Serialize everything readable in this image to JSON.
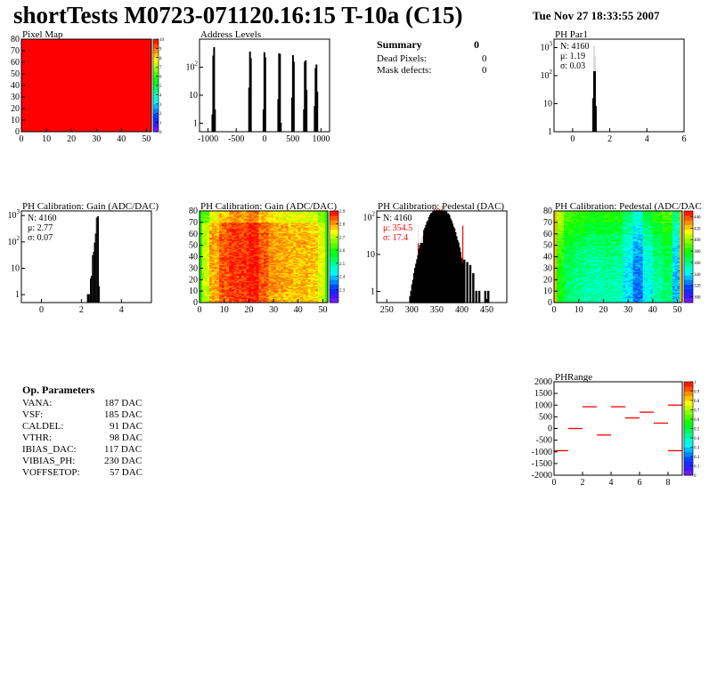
{
  "header": {
    "title": "shortTests M0723-071120.16:15 T-10a (C15)",
    "date": "Tue Nov 27 18:33:55 2007"
  },
  "summary": {
    "title": "Summary",
    "total": "0",
    "rows": [
      {
        "label": "Dead Pixels:",
        "value": "0"
      },
      {
        "label": "Mask defects:",
        "value": "0"
      }
    ]
  },
  "op_parameters": {
    "title": "Op. Parameters",
    "rows": [
      {
        "label": "VANA:",
        "value": "187 DAC"
      },
      {
        "label": "VSF:",
        "value": "185 DAC"
      },
      {
        "label": "CALDEL:",
        "value": "91 DAC"
      },
      {
        "label": "VTHR:",
        "value": "98 DAC"
      },
      {
        "label": "IBIAS_DAC:",
        "value": "117 DAC"
      },
      {
        "label": "VIBIAS_PH:",
        "value": "230 DAC"
      },
      {
        "label": "VOFFSETOP:",
        "value": "57 DAC"
      }
    ]
  },
  "colors": {
    "hist_line": "#000000",
    "red": "#ff0000"
  },
  "chart_data": [
    {
      "id": "pixelmap",
      "type": "heatmap",
      "title": "Pixel Map",
      "xlim": [
        0,
        52
      ],
      "ylim": [
        0,
        80
      ],
      "zlim": [
        0,
        10
      ],
      "xticks": [
        0,
        10,
        20,
        30,
        40,
        50
      ],
      "yticks": [
        0,
        10,
        20,
        30,
        40,
        50,
        60,
        70,
        80
      ],
      "zticks": [
        0,
        1,
        2,
        3,
        4,
        5,
        6,
        7,
        8,
        9,
        10
      ],
      "uniform_value": 10
    },
    {
      "id": "address",
      "type": "bar",
      "title": "Address Levels",
      "log_y": true,
      "xlim": [
        -1150,
        1150
      ],
      "ylim": [
        0.5,
        1000
      ],
      "xticks": [
        -1000,
        -500,
        0,
        500,
        1000
      ],
      "yticks": [
        1,
        10,
        100
      ],
      "bins": [
        [
          -930,
          2
        ],
        [
          -915,
          250
        ],
        [
          -900,
          500
        ],
        [
          -885,
          3
        ],
        [
          -280,
          18
        ],
        [
          -265,
          350
        ],
        [
          -250,
          200
        ],
        [
          -25,
          3
        ],
        [
          -10,
          330
        ],
        [
          5,
          220
        ],
        [
          235,
          7
        ],
        [
          250,
          300
        ],
        [
          265,
          290
        ],
        [
          280,
          1
        ],
        [
          480,
          8
        ],
        [
          495,
          260
        ],
        [
          510,
          150
        ],
        [
          690,
          3
        ],
        [
          705,
          150
        ],
        [
          720,
          170
        ],
        [
          735,
          15
        ],
        [
          880,
          4
        ],
        [
          895,
          90
        ],
        [
          910,
          120
        ],
        [
          925,
          13
        ]
      ]
    },
    {
      "id": "phpar1",
      "type": "bar",
      "title": "PH Par1",
      "log_y": true,
      "xlim": [
        -1,
        6
      ],
      "ylim": [
        1,
        2000
      ],
      "xticks": [
        0,
        2,
        4,
        6
      ],
      "yticks": [
        1,
        10,
        100,
        1000
      ],
      "stats": {
        "n": "N: 4160",
        "mean": "μ: 1.19",
        "sigma": "σ: 0.03"
      },
      "bins": [
        [
          1.08,
          15
        ],
        [
          1.13,
          1100
        ],
        [
          1.18,
          450
        ],
        [
          1.23,
          8
        ]
      ]
    },
    {
      "id": "gainhist",
      "type": "bar",
      "title": "PH Calibration: Gain (ADC/DAC)",
      "log_y": true,
      "xlim": [
        -1,
        5.5
      ],
      "ylim": [
        0.5,
        1500
      ],
      "xticks": [
        0,
        2,
        4
      ],
      "yticks": [
        1,
        10,
        100,
        1000
      ],
      "stats": {
        "n": "N: 4160",
        "mean": "μ: 2.77",
        "sigma": "σ: 0.07"
      },
      "bins": [
        [
          2.3,
          1
        ],
        [
          2.35,
          1
        ],
        [
          2.45,
          4
        ],
        [
          2.5,
          5
        ],
        [
          2.55,
          30
        ],
        [
          2.6,
          40
        ],
        [
          2.65,
          90
        ],
        [
          2.7,
          200
        ],
        [
          2.75,
          800
        ],
        [
          2.8,
          900
        ],
        [
          2.85,
          2
        ]
      ]
    },
    {
      "id": "gainmap",
      "type": "heatmap",
      "title": "PH Calibration: Gain (ADC/DAC)",
      "xlim": [
        0,
        52
      ],
      "ylim": [
        0,
        80
      ],
      "zlim": [
        2.2,
        2.9
      ],
      "xticks": [
        0,
        10,
        20,
        30,
        40,
        50
      ],
      "yticks": [
        0,
        10,
        20,
        30,
        40,
        50,
        60,
        70,
        80
      ],
      "zticks": [
        2.3,
        2.4,
        2.5,
        2.6,
        2.7,
        2.8,
        2.9
      ],
      "column_profile": [
        2.7,
        2.79,
        2.84,
        2.86,
        2.86,
        2.88,
        2.84,
        2.8,
        2.79,
        2.78,
        2.78,
        2.77,
        2.72
      ],
      "row_profile": [
        2.8,
        2.81,
        2.81,
        2.81,
        2.81,
        2.81,
        2.8,
        2.74
      ]
    },
    {
      "id": "pedestal",
      "type": "bar",
      "title": "PH Calibration: Pedestal (DAC)",
      "log_y": true,
      "xlim": [
        230,
        490
      ],
      "ylim": [
        0.5,
        150
      ],
      "xticks": [
        250,
        300,
        350,
        400,
        450
      ],
      "yticks": [
        1,
        10,
        100
      ],
      "stats": {
        "n": "N: 4160",
        "mean": "μ: 354.5",
        "sigma": "σ: 17.4"
      },
      "mean": 354.5,
      "sigma": 17.4,
      "entries": 4160,
      "bin_width": 2,
      "cut_lines": [
        313,
        402
      ],
      "tail_bins": [
        [
          404,
          7
        ],
        [
          410,
          6
        ],
        [
          416,
          5
        ],
        [
          422,
          3
        ],
        [
          428,
          1
        ],
        [
          434,
          1
        ],
        [
          446,
          1
        ],
        [
          452,
          1
        ]
      ]
    },
    {
      "id": "pedmap",
      "type": "heatmap",
      "title": "PH Calibration: Pedestal (ADC/DAC",
      "xlim": [
        0,
        52
      ],
      "ylim": [
        0,
        80
      ],
      "zlim": [
        290,
        450
      ],
      "xticks": [
        0,
        10,
        20,
        30,
        40,
        50
      ],
      "yticks": [
        0,
        10,
        20,
        30,
        40,
        50,
        60,
        70,
        80
      ],
      "zticks": [
        300,
        320,
        340,
        360,
        380,
        400,
        420,
        440
      ],
      "column_profile": [
        385,
        370,
        365,
        360,
        360,
        362,
        360,
        345,
        330,
        350,
        362,
        370,
        340
      ],
      "row_profile": [
        352,
        352,
        354,
        356,
        360,
        365,
        372,
        380
      ]
    },
    {
      "id": "phrange",
      "type": "segments",
      "title": "PHRange",
      "xlim": [
        0,
        9
      ],
      "ylim": [
        -2000,
        2000
      ],
      "zlim": [
        0,
        1
      ],
      "xticks": [
        0,
        2,
        4,
        6,
        8
      ],
      "yticks": [
        -2000,
        -1500,
        -1000,
        -500,
        0,
        500,
        1000,
        1500,
        2000
      ],
      "zticks": [
        0,
        0.1,
        0.2,
        0.3,
        0.4,
        0.5,
        0.6,
        0.7,
        0.8,
        0.9,
        1
      ],
      "segments": [
        [
          0,
          1,
          -950
        ],
        [
          1,
          2,
          0
        ],
        [
          2,
          3,
          930
        ],
        [
          3,
          4,
          -280
        ],
        [
          4,
          5,
          930
        ],
        [
          5,
          6,
          450
        ],
        [
          6,
          7,
          700
        ],
        [
          7,
          8,
          230
        ],
        [
          8,
          9,
          1000
        ],
        [
          8,
          9,
          -950
        ]
      ]
    }
  ]
}
